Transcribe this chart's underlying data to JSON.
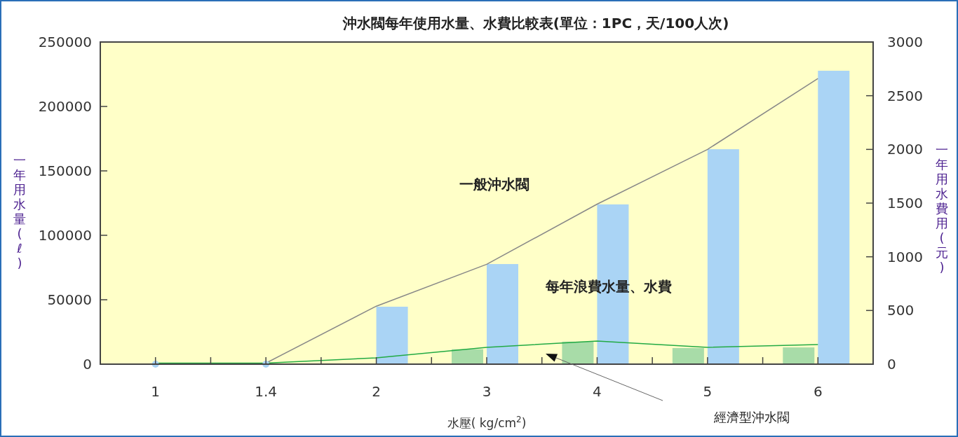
{
  "chart_data": {
    "type": "bar",
    "title": "沖水閥每年使用水量、水費比較表(單位：1PC，天/100人次)",
    "xlabel": "水壓( kg/cm$^{2}$)",
    "ylabel": "一年用水量(ℓ)",
    "y2label": "一年用水費用(元)",
    "categories": [
      "1",
      "1.4",
      "2",
      "3",
      "4",
      "5",
      "6"
    ],
    "series": [
      {
        "type": "bar",
        "color": "#a8dca8",
        "values": [
          null,
          null,
          null,
          11600,
          17500,
          12500,
          13000
        ]
      },
      {
        "type": "bar",
        "color": "#aad4f5",
        "values": [
          null,
          null,
          44600,
          77700,
          124000,
          166800,
          227700
        ]
      },
      {
        "type": "scatter",
        "color": "#aad4f5",
        "marker": "circle",
        "x": [
          "1",
          "1.4"
        ],
        "values": [
          0,
          0
        ]
      },
      {
        "type": "line",
        "axis": "y2",
        "color": "#888888",
        "values": [
          null,
          10,
          540,
          930,
          1490,
          2000,
          2660
        ]
      },
      {
        "type": "line",
        "axis": "y2",
        "color": "#22aa44",
        "values": [
          10,
          10,
          59,
          157,
          215,
          157,
          183
        ]
      }
    ],
    "ylim": [
      0,
      250000
    ],
    "yticks": [
      0,
      50000,
      100000,
      150000,
      200000,
      250000
    ],
    "y2lim": [
      0,
      3000
    ],
    "y2ticks": [
      0,
      500,
      1000,
      1500,
      2000,
      2500,
      3000
    ],
    "annotations": [
      "一般沖水閥",
      "每年浪費水量、水費",
      "經濟型沖水閥"
    ]
  }
}
